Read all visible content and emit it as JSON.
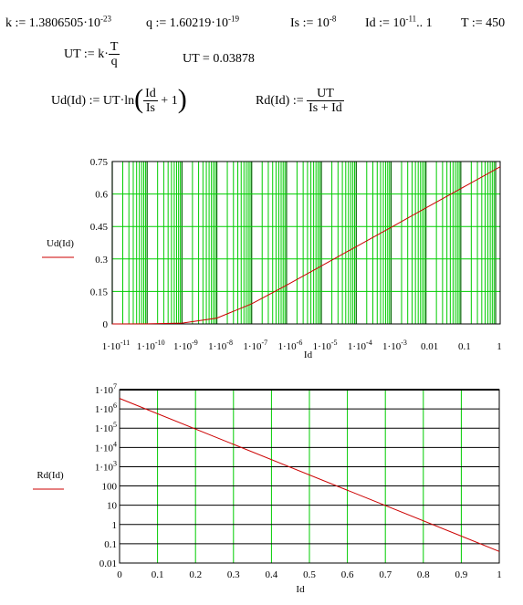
{
  "equations": {
    "k": {
      "lhs": "k",
      "op": ":=",
      "mantissa": "1.3806505",
      "dot": "·",
      "base": "10",
      "exp": "-23"
    },
    "q": {
      "lhs": "q",
      "op": ":=",
      "mantissa": "1.60219",
      "dot": "·",
      "base": "10",
      "exp": "-19"
    },
    "Is": {
      "lhs": "Is",
      "op": ":=",
      "base": "10",
      "exp": "-8"
    },
    "Id": {
      "lhs": "Id",
      "op": ":=",
      "base": "10",
      "exp": "-11",
      "range": ".. 1"
    },
    "T": {
      "lhs": "T",
      "op": ":=",
      "value": "450"
    },
    "UT_def": {
      "lhs": "UT",
      "op": ":=",
      "k": "k",
      "dot": "·",
      "num": "T",
      "den": "q"
    },
    "UT_res": {
      "lhs": "UT",
      "op": "=",
      "value": "0.03878"
    },
    "Ud_def": {
      "lhs": "Ud(Id)",
      "op": ":=",
      "pre": "UT·ln",
      "num": "Id",
      "den": "Is",
      "post": "+ 1"
    },
    "Rd_def": {
      "lhs": "Rd(Id)",
      "op": ":=",
      "num": "UT",
      "den": "Is + Id"
    }
  },
  "colors": {
    "grid": "#00cc00",
    "trace": "#cc0000",
    "axis": "#000000"
  },
  "chart_data": [
    {
      "type": "line",
      "title": "",
      "xlabel": "Id",
      "ylabel": "Ud(Id)",
      "xscale": "log",
      "xlim": [
        1e-11,
        1.35
      ],
      "ylim": [
        0,
        0.75
      ],
      "xticks": [
        1e-11,
        1e-10,
        1e-09,
        1e-08,
        1e-07,
        1e-06,
        1e-05,
        0.0001,
        0.001,
        0.01,
        0.1,
        1
      ],
      "xtick_labels": [
        {
          "m": "1·10",
          "e": "-11"
        },
        {
          "m": "1·10",
          "e": "-10"
        },
        {
          "m": "1·10",
          "e": "-9"
        },
        {
          "m": "1·10",
          "e": "-8"
        },
        {
          "m": "1·10",
          "e": "-7"
        },
        {
          "m": "1·10",
          "e": "-6"
        },
        {
          "m": "1·10",
          "e": "-5"
        },
        {
          "m": "1·10",
          "e": "-4"
        },
        {
          "m": "1·10",
          "e": "-3"
        },
        {
          "m": "0.01",
          "e": ""
        },
        {
          "m": "0.1",
          "e": ""
        },
        {
          "m": "1",
          "e": ""
        }
      ],
      "yticks": [
        0,
        0.15,
        0.3,
        0.45,
        0.6,
        0.75
      ],
      "ytick_labels": [
        "0",
        "0.15",
        "0.3",
        "0.45",
        "0.6",
        "0.75"
      ],
      "grid": true,
      "series": [
        {
          "x": [
            1e-11,
            1e-10,
            1e-09,
            1e-08,
            1e-07,
            1e-06,
            1e-05,
            0.0001,
            0.001,
            0.01,
            0.1,
            1,
            1.35
          ],
          "y": [
            3.88e-05,
            0.000388,
            0.0037,
            0.0269,
            0.093,
            0.179,
            0.268,
            0.357,
            0.446,
            0.536,
            0.625,
            0.714,
            0.726
          ]
        }
      ]
    },
    {
      "type": "line",
      "title": "",
      "xlabel": "Id",
      "ylabel": "Rd(Id)",
      "yscale": "log",
      "xlim": [
        0,
        1
      ],
      "ylim": [
        0.01,
        10000000
      ],
      "xticks": [
        0,
        0.1,
        0.2,
        0.3,
        0.4,
        0.5,
        0.6,
        0.7,
        0.8,
        0.9,
        1
      ],
      "xtick_labels": [
        "0",
        "0.1",
        "0.2",
        "0.3",
        "0.4",
        "0.5",
        "0.6",
        "0.7",
        "0.8",
        "0.9",
        "1"
      ],
      "yticks": [
        0.01,
        0.1,
        1,
        10,
        100,
        1000,
        10000,
        100000,
        1000000,
        10000000
      ],
      "ytick_labels": [
        {
          "m": "0.01",
          "e": ""
        },
        {
          "m": "0.1",
          "e": ""
        },
        {
          "m": "1",
          "e": ""
        },
        {
          "m": "10",
          "e": ""
        },
        {
          "m": "100",
          "e": ""
        },
        {
          "m": "1·10",
          "e": "3"
        },
        {
          "m": "1·10",
          "e": "4"
        },
        {
          "m": "1·10",
          "e": "5"
        },
        {
          "m": "1·10",
          "e": "6"
        },
        {
          "m": "1·10",
          "e": "7"
        }
      ],
      "grid": true,
      "series": [
        {
          "x": [
            0,
            1
          ],
          "y": [
            3500000,
            0.04
          ]
        }
      ]
    }
  ]
}
